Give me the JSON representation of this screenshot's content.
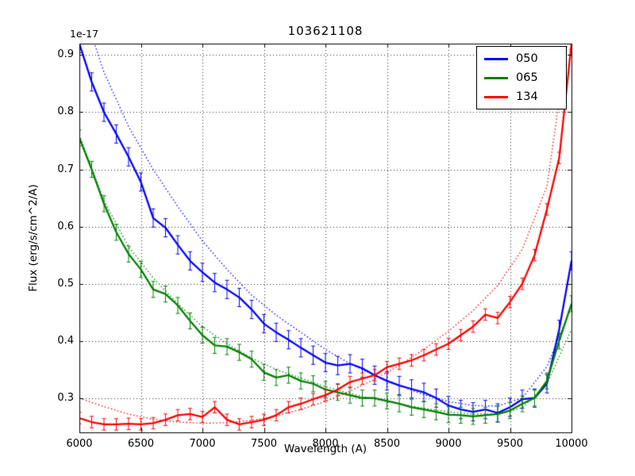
{
  "chart_data": {
    "type": "line",
    "title": "103621108",
    "xlabel": "Wavelength (A)",
    "ylabel": "Flux (erg/s/cm^2/A)",
    "y_scale_factor": "1e-17",
    "grid": true,
    "legend_position": "upper right",
    "xlim": [
      6000,
      10000
    ],
    "ylim": [
      0.24,
      0.92
    ],
    "xticks": [
      "6000",
      "6500",
      "7000",
      "7500",
      "8000",
      "8500",
      "9000",
      "9500",
      "10000"
    ],
    "yticks": [
      "0.3",
      "0.4",
      "0.5",
      "0.6",
      "0.7",
      "0.8",
      "0.9"
    ],
    "x": [
      6000,
      6100,
      6200,
      6300,
      6400,
      6500,
      6600,
      6700,
      6800,
      6900,
      7000,
      7100,
      7200,
      7300,
      7400,
      7500,
      7600,
      7700,
      7800,
      7900,
      8000,
      8100,
      8200,
      8300,
      8400,
      8500,
      8600,
      8700,
      8800,
      8900,
      9000,
      9100,
      9200,
      9300,
      9400,
      9500,
      9600,
      9700,
      9800,
      9900,
      10000
    ],
    "model_x": [
      6000,
      6200,
      6400,
      6600,
      6800,
      7000,
      7200,
      7400,
      7600,
      7800,
      8000,
      8200,
      8400,
      8600,
      8800,
      9000,
      9200,
      9400,
      9600,
      9800,
      10000
    ],
    "series": [
      {
        "name": "050",
        "color": "#0000ff",
        "err": 0.016,
        "values": [
          0.92,
          0.853,
          0.8,
          0.762,
          0.722,
          0.678,
          0.615,
          0.598,
          0.568,
          0.54,
          0.52,
          0.502,
          0.49,
          0.476,
          0.455,
          0.43,
          0.415,
          0.402,
          0.388,
          0.375,
          0.362,
          0.357,
          0.36,
          0.352,
          0.34,
          0.33,
          0.322,
          0.316,
          0.31,
          0.3,
          0.287,
          0.28,
          0.276,
          0.28,
          0.274,
          0.284,
          0.298,
          0.3,
          0.325,
          0.42,
          0.54
        ],
        "model": [
          1.0,
          0.87,
          0.775,
          0.7,
          0.635,
          0.575,
          0.525,
          0.48,
          0.445,
          0.415,
          0.385,
          0.36,
          0.34,
          0.322,
          0.306,
          0.294,
          0.287,
          0.286,
          0.3,
          0.355,
          0.46
        ]
      },
      {
        "name": "065",
        "color": "#008000",
        "err": 0.014,
        "values": [
          0.755,
          0.7,
          0.64,
          0.59,
          0.552,
          0.525,
          0.49,
          0.482,
          0.462,
          0.435,
          0.41,
          0.392,
          0.39,
          0.38,
          0.368,
          0.345,
          0.336,
          0.34,
          0.33,
          0.325,
          0.315,
          0.31,
          0.305,
          0.3,
          0.3,
          0.295,
          0.29,
          0.284,
          0.28,
          0.276,
          0.271,
          0.27,
          0.268,
          0.27,
          0.272,
          0.278,
          0.29,
          0.3,
          0.33,
          0.4,
          0.465
        ],
        "model": [
          0.76,
          0.645,
          0.565,
          0.51,
          0.465,
          0.425,
          0.395,
          0.37,
          0.35,
          0.335,
          0.32,
          0.308,
          0.298,
          0.29,
          0.282,
          0.276,
          0.272,
          0.272,
          0.283,
          0.325,
          0.42
        ]
      },
      {
        "name": "134",
        "color": "#ff0000",
        "err": 0.01,
        "values": [
          0.265,
          0.258,
          0.254,
          0.254,
          0.255,
          0.254,
          0.256,
          0.262,
          0.27,
          0.272,
          0.267,
          0.284,
          0.262,
          0.254,
          0.258,
          0.262,
          0.27,
          0.284,
          0.29,
          0.298,
          0.305,
          0.315,
          0.328,
          0.334,
          0.34,
          0.354,
          0.36,
          0.366,
          0.375,
          0.385,
          0.395,
          0.41,
          0.425,
          0.446,
          0.44,
          0.468,
          0.5,
          0.55,
          0.63,
          0.72,
          0.92
        ],
        "model": [
          0.3,
          0.285,
          0.272,
          0.263,
          0.258,
          0.256,
          0.257,
          0.261,
          0.269,
          0.28,
          0.294,
          0.312,
          0.333,
          0.357,
          0.385,
          0.417,
          0.453,
          0.497,
          0.56,
          0.67,
          0.97
        ]
      }
    ]
  }
}
